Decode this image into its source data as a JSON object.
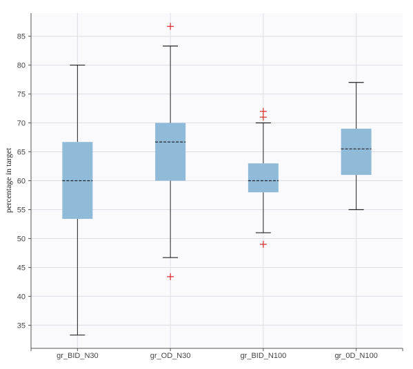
{
  "chart_data": {
    "type": "boxplot",
    "ylabel": "percentage in target",
    "xlabel": "",
    "title": "",
    "ylim": [
      31,
      89
    ],
    "yticks": [
      35,
      40,
      45,
      50,
      55,
      60,
      65,
      70,
      75,
      80,
      85
    ],
    "grid": true,
    "categories": [
      "gr_BID_N30",
      "gr_OD_N30",
      "gr_BID_N100",
      "gr_0D_N100"
    ],
    "boxes": [
      {
        "category": "gr_BID_N30",
        "whisker_low": 33.3,
        "q1": 53.4,
        "median": 60.0,
        "q3": 66.7,
        "whisker_high": 80.0,
        "outliers": []
      },
      {
        "category": "gr_OD_N30",
        "whisker_low": 46.7,
        "q1": 60.0,
        "median": 66.7,
        "q3": 70.0,
        "whisker_high": 83.3,
        "outliers": [
          86.7,
          43.4
        ]
      },
      {
        "category": "gr_BID_N100",
        "whisker_low": 51.0,
        "q1": 58.0,
        "median": 60.0,
        "q3": 63.0,
        "whisker_high": 70.0,
        "outliers": [
          72.0,
          71.0,
          49.0
        ]
      },
      {
        "category": "gr_0D_N100",
        "whisker_low": 55.0,
        "q1": 61.0,
        "median": 65.5,
        "q3": 69.0,
        "whisker_high": 77.0,
        "outliers": []
      }
    ],
    "colors": {
      "box_fill": "#8fbbd9",
      "median": "#222222",
      "whisker": "#222222",
      "outlier": "#d62728",
      "plot_bg": "#fafafd",
      "grid": "#dddde6",
      "axis": "#555555"
    }
  }
}
